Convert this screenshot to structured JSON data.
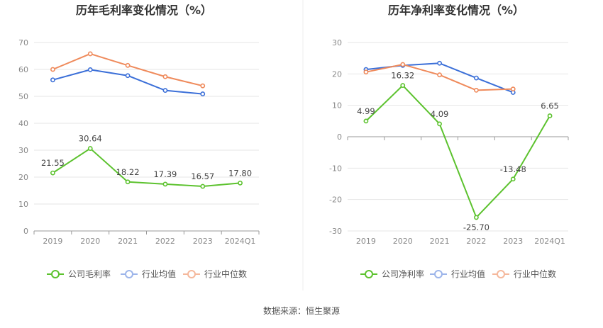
{
  "source": "数据来源：恒生聚源",
  "chart_data": [
    {
      "type": "line",
      "title": "历年毛利率变化情况（%）",
      "categories": [
        "2019",
        "2020",
        "2021",
        "2022",
        "2023",
        "2024Q1"
      ],
      "ylim": [
        0,
        70
      ],
      "yticks": [
        0,
        10,
        20,
        30,
        40,
        50,
        60,
        70
      ],
      "grid": true,
      "legend_position": "bottom",
      "series": [
        {
          "name": "公司毛利率",
          "color": "#5cc22e",
          "values": [
            21.55,
            30.64,
            18.22,
            17.39,
            16.57,
            17.8
          ],
          "labels": [
            "21.55",
            "30.64",
            "18.22",
            "17.39",
            "16.57",
            "17.80"
          ]
        },
        {
          "name": "行业均值",
          "color": "#3b6fd8",
          "values": [
            56.1,
            59.9,
            57.7,
            52.2,
            50.9,
            null
          ]
        },
        {
          "name": "行业中位数",
          "color": "#ef8a5b",
          "values": [
            60.0,
            65.8,
            61.5,
            57.3,
            53.9,
            null
          ]
        }
      ]
    },
    {
      "type": "line",
      "title": "历年净利率变化情况（%）",
      "categories": [
        "2019",
        "2020",
        "2021",
        "2022",
        "2023",
        "2024Q1"
      ],
      "ylim": [
        -30,
        30
      ],
      "yticks": [
        -30,
        -20,
        -10,
        0,
        10,
        20,
        30
      ],
      "grid": true,
      "legend_position": "bottom",
      "series": [
        {
          "name": "公司净利率",
          "color": "#5cc22e",
          "values": [
            4.99,
            16.32,
            4.09,
            -25.7,
            -13.48,
            6.65
          ],
          "labels": [
            "4.99",
            "16.32",
            "4.09",
            "-25.70",
            "-13.48",
            "6.65"
          ]
        },
        {
          "name": "行业均值",
          "color": "#3b6fd8",
          "values": [
            21.4,
            22.7,
            23.4,
            18.7,
            14.1,
            null
          ]
        },
        {
          "name": "行业中位数",
          "color": "#ef8a5b",
          "values": [
            20.6,
            23.0,
            19.7,
            14.8,
            15.2,
            null
          ]
        }
      ]
    }
  ]
}
